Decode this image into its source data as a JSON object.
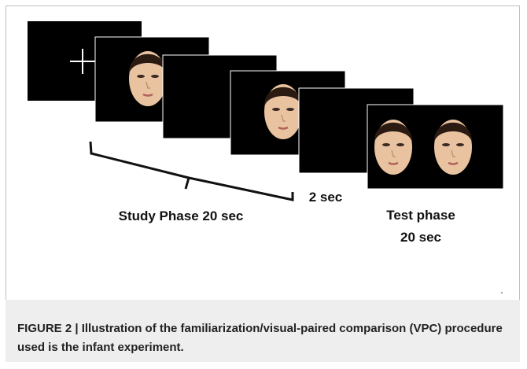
{
  "labels": {
    "study": "Study Phase 20 sec",
    "interval": "2 sec",
    "test_line1": "Test phase",
    "test_line2": "20 sec"
  },
  "caption": {
    "label": "FIGURE 2 |",
    "text": "Illustration of the familiarization/visual-paired comparison (VPC) procedure used is the infant experiment."
  }
}
